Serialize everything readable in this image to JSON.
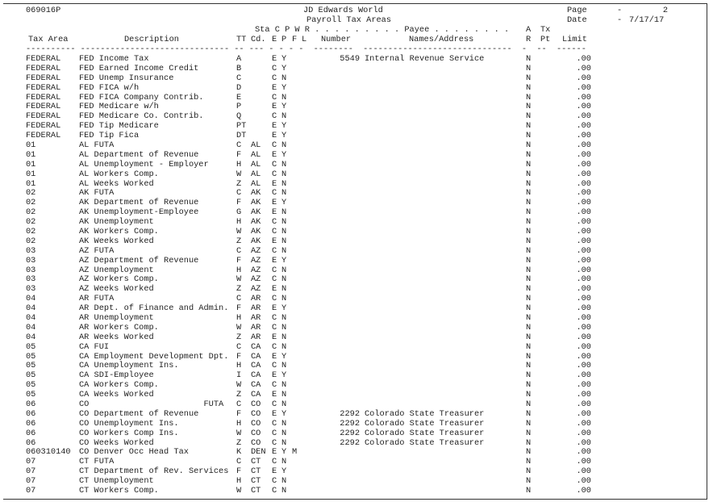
{
  "report": {
    "id": "069016P",
    "company": "JD Edwards World",
    "title": "Payroll Tax Areas",
    "page_label": "Page",
    "page_sep": "-",
    "page_value": "2",
    "date_label": "Date",
    "date_sep": "-",
    "date_value": "7/17/17"
  },
  "headers": {
    "line1": "Sta C P W R . . . . . . . . . Payee . . . . . . . .",
    "a": "A",
    "tx": "Tx",
    "tax_area": "Tax Area",
    "description": "Description",
    "tt": "TT",
    "cd": "Cd.",
    "e": "E",
    "p": "P",
    "f": "F",
    "l": "L",
    "number": "Number",
    "names": "Names/Address",
    "r": "R",
    "pt": "Pt",
    "limit": "Limit",
    "dashes": "---------- ------------------------------ -- --- - - - -  --------  ------------------------------  -  --  ------"
  },
  "rows": [
    {
      "area": "FEDERAL",
      "desc": "FED Income Tax",
      "tt": "A",
      "sta": "",
      "c": "E",
      "p": "Y",
      "w": "",
      "number": "5549",
      "payee": "Internal Revenue Service",
      "ar": "N",
      "limit": ".00"
    },
    {
      "area": "FEDERAL",
      "desc": "FED Earned Income Credit",
      "tt": "B",
      "sta": "",
      "c": "C",
      "p": "Y",
      "w": "",
      "number": "",
      "payee": "",
      "ar": "N",
      "limit": ".00"
    },
    {
      "area": "FEDERAL",
      "desc": "FED Unemp Insurance",
      "tt": "C",
      "sta": "",
      "c": "C",
      "p": "N",
      "w": "",
      "number": "",
      "payee": "",
      "ar": "N",
      "limit": ".00"
    },
    {
      "area": "FEDERAL",
      "desc": "FED FICA w/h",
      "tt": "D",
      "sta": "",
      "c": "E",
      "p": "Y",
      "w": "",
      "number": "",
      "payee": "",
      "ar": "N",
      "limit": ".00"
    },
    {
      "area": "FEDERAL",
      "desc": "FED FICA Company Contrib.",
      "tt": "E",
      "sta": "",
      "c": "C",
      "p": "N",
      "w": "",
      "number": "",
      "payee": "",
      "ar": "N",
      "limit": ".00"
    },
    {
      "area": "FEDERAL",
      "desc": "FED Medicare w/h",
      "tt": "P",
      "sta": "",
      "c": "E",
      "p": "Y",
      "w": "",
      "number": "",
      "payee": "",
      "ar": "N",
      "limit": ".00"
    },
    {
      "area": "FEDERAL",
      "desc": "FED Medicare Co. Contrib.",
      "tt": "Q",
      "sta": "",
      "c": "C",
      "p": "N",
      "w": "",
      "number": "",
      "payee": "",
      "ar": "N",
      "limit": ".00"
    },
    {
      "area": "FEDERAL",
      "desc": "FED Tip Medicare",
      "tt": "PT",
      "sta": "",
      "c": "E",
      "p": "Y",
      "w": "",
      "number": "",
      "payee": "",
      "ar": "N",
      "limit": ".00"
    },
    {
      "area": "FEDERAL",
      "desc": "FED Tip Fica",
      "tt": "DT",
      "sta": "",
      "c": "E",
      "p": "Y",
      "w": "",
      "number": "",
      "payee": "",
      "ar": "N",
      "limit": ".00"
    },
    {
      "area": "01",
      "desc": "AL FUTA",
      "tt": "C",
      "sta": "AL",
      "c": "C",
      "p": "N",
      "w": "",
      "number": "",
      "payee": "",
      "ar": "N",
      "limit": ".00"
    },
    {
      "area": "01",
      "desc": "AL Department of Revenue",
      "tt": "F",
      "sta": "AL",
      "c": "E",
      "p": "Y",
      "w": "",
      "number": "",
      "payee": "",
      "ar": "N",
      "limit": ".00"
    },
    {
      "area": "01",
      "desc": "AL Unemployment - Employer",
      "tt": "H",
      "sta": "AL",
      "c": "C",
      "p": "N",
      "w": "",
      "number": "",
      "payee": "",
      "ar": "N",
      "limit": ".00"
    },
    {
      "area": "01",
      "desc": "AL Workers Comp.",
      "tt": "W",
      "sta": "AL",
      "c": "C",
      "p": "N",
      "w": "",
      "number": "",
      "payee": "",
      "ar": "N",
      "limit": ".00"
    },
    {
      "area": "01",
      "desc": "AL Weeks Worked",
      "tt": "Z",
      "sta": "AL",
      "c": "E",
      "p": "N",
      "w": "",
      "number": "",
      "payee": "",
      "ar": "N",
      "limit": ".00"
    },
    {
      "area": "02",
      "desc": "AK FUTA",
      "tt": "C",
      "sta": "AK",
      "c": "C",
      "p": "N",
      "w": "",
      "number": "",
      "payee": "",
      "ar": "N",
      "limit": ".00"
    },
    {
      "area": "02",
      "desc": "AK Department of Revenue",
      "tt": "F",
      "sta": "AK",
      "c": "E",
      "p": "Y",
      "w": "",
      "number": "",
      "payee": "",
      "ar": "N",
      "limit": ".00"
    },
    {
      "area": "02",
      "desc": "AK Unemployment-Employee",
      "tt": "G",
      "sta": "AK",
      "c": "E",
      "p": "N",
      "w": "",
      "number": "",
      "payee": "",
      "ar": "N",
      "limit": ".00"
    },
    {
      "area": "02",
      "desc": "AK Unemployment",
      "tt": "H",
      "sta": "AK",
      "c": "C",
      "p": "N",
      "w": "",
      "number": "",
      "payee": "",
      "ar": "N",
      "limit": ".00"
    },
    {
      "area": "02",
      "desc": "AK Workers Comp.",
      "tt": "W",
      "sta": "AK",
      "c": "C",
      "p": "N",
      "w": "",
      "number": "",
      "payee": "",
      "ar": "N",
      "limit": ".00"
    },
    {
      "area": "02",
      "desc": "AK Weeks Worked",
      "tt": "Z",
      "sta": "AK",
      "c": "E",
      "p": "N",
      "w": "",
      "number": "",
      "payee": "",
      "ar": "N",
      "limit": ".00"
    },
    {
      "area": "03",
      "desc": "AZ FUTA",
      "tt": "C",
      "sta": "AZ",
      "c": "C",
      "p": "N",
      "w": "",
      "number": "",
      "payee": "",
      "ar": "N",
      "limit": ".00"
    },
    {
      "area": "03",
      "desc": "AZ Department of Revenue",
      "tt": "F",
      "sta": "AZ",
      "c": "E",
      "p": "Y",
      "w": "",
      "number": "",
      "payee": "",
      "ar": "N",
      "limit": ".00"
    },
    {
      "area": "03",
      "desc": "AZ Unemployment",
      "tt": "H",
      "sta": "AZ",
      "c": "C",
      "p": "N",
      "w": "",
      "number": "",
      "payee": "",
      "ar": "N",
      "limit": ".00"
    },
    {
      "area": "03",
      "desc": "AZ Workers Comp.",
      "tt": "W",
      "sta": "AZ",
      "c": "C",
      "p": "N",
      "w": "",
      "number": "",
      "payee": "",
      "ar": "N",
      "limit": ".00"
    },
    {
      "area": "03",
      "desc": "AZ Weeks Worked",
      "tt": "Z",
      "sta": "AZ",
      "c": "E",
      "p": "N",
      "w": "",
      "number": "",
      "payee": "",
      "ar": "N",
      "limit": ".00"
    },
    {
      "area": "04",
      "desc": "AR FUTA",
      "tt": "C",
      "sta": "AR",
      "c": "C",
      "p": "N",
      "w": "",
      "number": "",
      "payee": "",
      "ar": "N",
      "limit": ".00"
    },
    {
      "area": "04",
      "desc": "AR Dept. of Finance and Admin.",
      "tt": "F",
      "sta": "AR",
      "c": "E",
      "p": "Y",
      "w": "",
      "number": "",
      "payee": "",
      "ar": "N",
      "limit": ".00"
    },
    {
      "area": "04",
      "desc": "AR Unemployment",
      "tt": "H",
      "sta": "AR",
      "c": "C",
      "p": "N",
      "w": "",
      "number": "",
      "payee": "",
      "ar": "N",
      "limit": ".00"
    },
    {
      "area": "04",
      "desc": "AR Workers Comp.",
      "tt": "W",
      "sta": "AR",
      "c": "C",
      "p": "N",
      "w": "",
      "number": "",
      "payee": "",
      "ar": "N",
      "limit": ".00"
    },
    {
      "area": "04",
      "desc": "AR Weeks Worked",
      "tt": "Z",
      "sta": "AR",
      "c": "E",
      "p": "N",
      "w": "",
      "number": "",
      "payee": "",
      "ar": "N",
      "limit": ".00"
    },
    {
      "area": "05",
      "desc": "CA FUI",
      "tt": "C",
      "sta": "CA",
      "c": "C",
      "p": "N",
      "w": "",
      "number": "",
      "payee": "",
      "ar": "N",
      "limit": ".00"
    },
    {
      "area": "05",
      "desc": "CA Employment Development Dpt.",
      "tt": "F",
      "sta": "CA",
      "c": "E",
      "p": "Y",
      "w": "",
      "number": "",
      "payee": "",
      "ar": "N",
      "limit": ".00"
    },
    {
      "area": "05",
      "desc": "CA Unemployment Ins.",
      "tt": "H",
      "sta": "CA",
      "c": "C",
      "p": "N",
      "w": "",
      "number": "",
      "payee": "",
      "ar": "N",
      "limit": ".00"
    },
    {
      "area": "05",
      "desc": "CA SDI-Employee",
      "tt": "I",
      "sta": "CA",
      "c": "E",
      "p": "Y",
      "w": "",
      "number": "",
      "payee": "",
      "ar": "N",
      "limit": ".00"
    },
    {
      "area": "05",
      "desc": "CA Workers Comp.",
      "tt": "W",
      "sta": "CA",
      "c": "C",
      "p": "N",
      "w": "",
      "number": "",
      "payee": "",
      "ar": "N",
      "limit": ".00"
    },
    {
      "area": "05",
      "desc": "CA Weeks Worked",
      "tt": "Z",
      "sta": "CA",
      "c": "E",
      "p": "N",
      "w": "",
      "number": "",
      "payee": "",
      "ar": "N",
      "limit": ".00"
    },
    {
      "area": "06",
      "desc": "CO                       FUTA",
      "tt": "C",
      "sta": "CO",
      "c": "C",
      "p": "N",
      "w": "",
      "number": "",
      "payee": "",
      "ar": "N",
      "limit": ".00"
    },
    {
      "area": "06",
      "desc": "CO Department of Revenue",
      "tt": "F",
      "sta": "CO",
      "c": "E",
      "p": "Y",
      "w": "",
      "number": "2292",
      "payee": "Colorado State Treasurer",
      "ar": "N",
      "limit": ".00"
    },
    {
      "area": "06",
      "desc": "CO Unemployment Ins.",
      "tt": "H",
      "sta": "CO",
      "c": "C",
      "p": "N",
      "w": "",
      "number": "2292",
      "payee": "Colorado State Treasurer",
      "ar": "N",
      "limit": ".00"
    },
    {
      "area": "06",
      "desc": "CO Workers Comp Ins.",
      "tt": "W",
      "sta": "CO",
      "c": "C",
      "p": "N",
      "w": "",
      "number": "2292",
      "payee": "Colorado State Treasurer",
      "ar": "N",
      "limit": ".00"
    },
    {
      "area": "06",
      "desc": "CO Weeks Worked",
      "tt": "Z",
      "sta": "CO",
      "c": "C",
      "p": "N",
      "w": "",
      "number": "2292",
      "payee": "Colorado State Treasurer",
      "ar": "N",
      "limit": ".00"
    },
    {
      "area": "060310140",
      "desc": "CO Denver Occ Head Tax",
      "tt": "K",
      "sta": "DEN",
      "c": "E",
      "p": "Y",
      "w": "M",
      "number": "",
      "payee": "",
      "ar": "N",
      "limit": ".00"
    },
    {
      "area": "07",
      "desc": "CT FUTA",
      "tt": "C",
      "sta": "CT",
      "c": "C",
      "p": "N",
      "w": "",
      "number": "",
      "payee": "",
      "ar": "N",
      "limit": ".00"
    },
    {
      "area": "07",
      "desc": "CT Department of Rev. Services",
      "tt": "F",
      "sta": "CT",
      "c": "E",
      "p": "Y",
      "w": "",
      "number": "",
      "payee": "",
      "ar": "N",
      "limit": ".00"
    },
    {
      "area": "07",
      "desc": "CT Unemployment",
      "tt": "H",
      "sta": "CT",
      "c": "C",
      "p": "N",
      "w": "",
      "number": "",
      "payee": "",
      "ar": "N",
      "limit": ".00"
    },
    {
      "area": "07",
      "desc": "CT Workers Comp.",
      "tt": "W",
      "sta": "CT",
      "c": "C",
      "p": "N",
      "w": "",
      "number": "",
      "payee": "",
      "ar": "N",
      "limit": ".00"
    }
  ]
}
